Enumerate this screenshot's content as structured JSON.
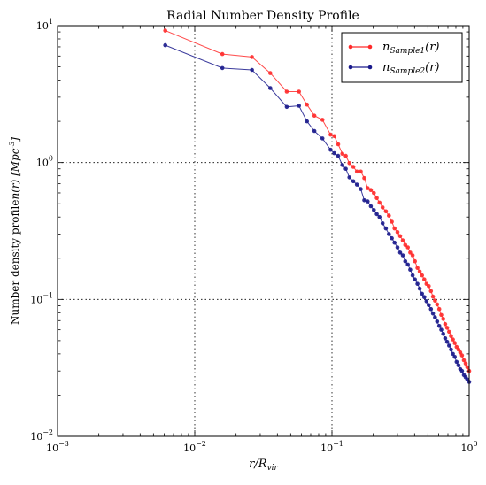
{
  "chart_data": {
    "type": "line",
    "title": "Radial Number Density Profile",
    "xlabel": "r/R_vir",
    "ylabel": "Number density profile n(r) [Mpc^-3]",
    "xscale": "log",
    "yscale": "log",
    "xlim": [
      0.001,
      1
    ],
    "ylim": [
      0.01,
      10
    ],
    "grid": true,
    "legend_position": "top-right",
    "x_ticks": [
      {
        "base": "10",
        "exp": "−3"
      },
      {
        "base": "10",
        "exp": "−2"
      },
      {
        "base": "10",
        "exp": "−1"
      },
      {
        "base": "10",
        "exp": "0"
      }
    ],
    "y_ticks": [
      {
        "base": "10",
        "exp": "−2"
      },
      {
        "base": "10",
        "exp": "−1"
      },
      {
        "base": "10",
        "exp": "0"
      },
      {
        "base": "10",
        "exp": "1"
      }
    ],
    "series": [
      {
        "name": "n_Sample1(r)",
        "label_main": "n",
        "label_sub": "Sample1",
        "label_tail": "(r)",
        "color": "#ff2a2a",
        "x": [
          0.0061,
          0.0159,
          0.0261,
          0.0355,
          0.0468,
          0.0575,
          0.0657,
          0.0744,
          0.0852,
          0.0976,
          0.104,
          0.111,
          0.119,
          0.126,
          0.134,
          0.143,
          0.152,
          0.162,
          0.172,
          0.182,
          0.192,
          0.202,
          0.212,
          0.222,
          0.234,
          0.247,
          0.26,
          0.273,
          0.286,
          0.3,
          0.314,
          0.328,
          0.342,
          0.357,
          0.372,
          0.387,
          0.402,
          0.42,
          0.436,
          0.453,
          0.471,
          0.489,
          0.507,
          0.526,
          0.545,
          0.564,
          0.584,
          0.605,
          0.626,
          0.647,
          0.669,
          0.691,
          0.714,
          0.737,
          0.761,
          0.785,
          0.81,
          0.835,
          0.861,
          0.887,
          0.915,
          0.942,
          0.97,
          1.0
        ],
        "y": [
          9.2,
          6.2,
          5.9,
          4.5,
          3.3,
          3.3,
          2.65,
          2.2,
          2.05,
          1.6,
          1.56,
          1.36,
          1.16,
          1.12,
          0.99,
          0.93,
          0.86,
          0.86,
          0.77,
          0.65,
          0.63,
          0.6,
          0.55,
          0.51,
          0.47,
          0.44,
          0.41,
          0.37,
          0.33,
          0.31,
          0.29,
          0.27,
          0.25,
          0.24,
          0.22,
          0.21,
          0.19,
          0.17,
          0.16,
          0.15,
          0.14,
          0.13,
          0.125,
          0.115,
          0.105,
          0.098,
          0.092,
          0.085,
          0.077,
          0.072,
          0.066,
          0.062,
          0.058,
          0.054,
          0.051,
          0.048,
          0.045,
          0.043,
          0.041,
          0.039,
          0.036,
          0.034,
          0.032,
          0.03
        ]
      },
      {
        "name": "n_Sample2(r)",
        "label_main": "n",
        "label_sub": "Sample2",
        "label_tail": "(r)",
        "color": "#1a1a8c",
        "x": [
          0.0061,
          0.0159,
          0.0261,
          0.0355,
          0.0468,
          0.0575,
          0.0657,
          0.0744,
          0.0852,
          0.0976,
          0.104,
          0.111,
          0.119,
          0.126,
          0.134,
          0.143,
          0.152,
          0.162,
          0.172,
          0.182,
          0.192,
          0.202,
          0.212,
          0.222,
          0.234,
          0.247,
          0.26,
          0.273,
          0.286,
          0.3,
          0.314,
          0.328,
          0.342,
          0.357,
          0.372,
          0.387,
          0.402,
          0.42,
          0.436,
          0.453,
          0.471,
          0.489,
          0.507,
          0.526,
          0.545,
          0.564,
          0.584,
          0.605,
          0.626,
          0.647,
          0.669,
          0.691,
          0.714,
          0.737,
          0.761,
          0.785,
          0.81,
          0.835,
          0.861,
          0.887,
          0.915,
          0.942,
          0.97,
          1.0
        ],
        "y": [
          7.2,
          4.9,
          4.75,
          3.5,
          2.55,
          2.6,
          2.0,
          1.7,
          1.5,
          1.24,
          1.17,
          1.12,
          0.96,
          0.9,
          0.78,
          0.73,
          0.69,
          0.64,
          0.53,
          0.52,
          0.48,
          0.45,
          0.42,
          0.4,
          0.36,
          0.33,
          0.3,
          0.28,
          0.26,
          0.24,
          0.22,
          0.21,
          0.19,
          0.18,
          0.165,
          0.15,
          0.14,
          0.13,
          0.12,
          0.11,
          0.104,
          0.097,
          0.091,
          0.085,
          0.079,
          0.074,
          0.069,
          0.064,
          0.06,
          0.056,
          0.052,
          0.049,
          0.046,
          0.043,
          0.04,
          0.038,
          0.035,
          0.033,
          0.031,
          0.03,
          0.028,
          0.027,
          0.026,
          0.025
        ]
      }
    ]
  }
}
